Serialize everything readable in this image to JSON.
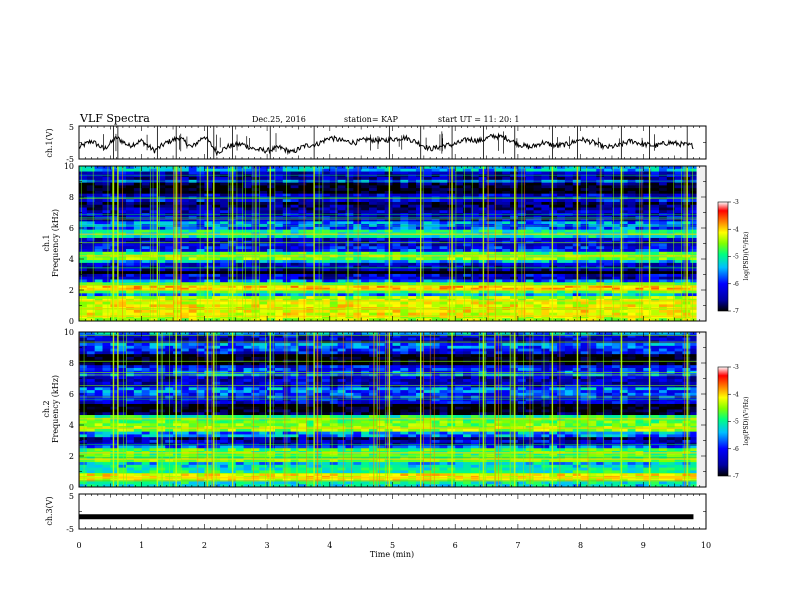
{
  "header": {
    "title": "VLF Spectra",
    "date": "Dec.25, 2016",
    "station": "station= KAP",
    "start": "start  UT =  11: 20: 1"
  },
  "colors": {
    "colormap": [
      "#000000",
      "#0000a0",
      "#0000ff",
      "#00c0ff",
      "#00ff80",
      "#80ff00",
      "#ffff00",
      "#ff8000",
      "#ff0000",
      "#ffffff"
    ],
    "waveform": "#000000"
  },
  "chart_data": [
    {
      "type": "line",
      "id": "ch1-waveform",
      "ylabel": "ch.1(V)",
      "ylim": [
        -5,
        5
      ],
      "yticks": [
        "5",
        "-5"
      ],
      "xlim": [
        0,
        10
      ],
      "series": [
        {
          "x": [
            0,
            0.2,
            0.4,
            0.6,
            0.8,
            1.0,
            1.2,
            1.4,
            1.6,
            1.8,
            2.0,
            2.2,
            2.4,
            2.6,
            2.8,
            3.0,
            3.2,
            3.4,
            3.6,
            3.8,
            4.0,
            4.2,
            4.4,
            4.6,
            4.8,
            5.0,
            5.2,
            5.4,
            5.6,
            5.8,
            6.0,
            6.2,
            6.4,
            6.6,
            6.8,
            7.0,
            7.2,
            7.4,
            7.6,
            7.8,
            8.0,
            8.2,
            8.4,
            8.6,
            8.8,
            9.0,
            9.2,
            9.4,
            9.6,
            9.8
          ],
          "values": [
            -1.5,
            0.5,
            -2.0,
            1.5,
            -1.0,
            0.5,
            -2.5,
            0.0,
            1.5,
            -1.5,
            2.0,
            -3.0,
            -1.0,
            -0.5,
            -2.0,
            -2.5,
            -1.5,
            -3.0,
            -1.0,
            -0.5,
            1.5,
            0.5,
            0.0,
            1.0,
            0.5,
            1.0,
            1.5,
            0.0,
            -2.0,
            -1.0,
            -0.5,
            1.0,
            0.5,
            2.0,
            1.5,
            -0.5,
            -1.5,
            0.0,
            -1.0,
            -0.5,
            1.0,
            0.0,
            -1.5,
            -1.0,
            0.5,
            -0.5,
            -1.0,
            0.0,
            -0.5,
            -1.0
          ]
        }
      ]
    },
    {
      "type": "heatmap",
      "id": "ch1-spectrogram",
      "ylabel_top": "ch.1",
      "ylabel": "Frequency (kHz)",
      "ylim": [
        0,
        10
      ],
      "yticks": [
        "0",
        "2",
        "4",
        "6",
        "8",
        "10"
      ],
      "xlim": [
        0,
        10
      ],
      "colorbar": {
        "label": "log(PSD)(V²/Hz)",
        "range": [
          -7,
          -3
        ],
        "ticks": [
          "-3",
          "-4",
          "-5",
          "-6",
          "-7"
        ]
      },
      "intense_bands_khz": [
        0.3,
        0.8,
        1.3,
        2.0,
        2.3,
        4.2,
        5.6
      ],
      "quiet_bands_khz": [
        3.0,
        3.4,
        6.8,
        7.4,
        8.6,
        9.4
      ],
      "bright_events_min": [
        0.55,
        0.62,
        1.25,
        1.55,
        2.05,
        2.15,
        2.45,
        3.05,
        3.75,
        4.95,
        5.45,
        5.95,
        6.45,
        6.95,
        7.55,
        7.95,
        8.65,
        9.1,
        9.7
      ]
    },
    {
      "type": "heatmap",
      "id": "ch2-spectrogram",
      "ylabel_top": "ch.2",
      "ylabel": "Frequency (kHz)",
      "ylim": [
        0,
        10
      ],
      "yticks": [
        "0",
        "2",
        "4",
        "6",
        "8",
        "10"
      ],
      "xlim": [
        0,
        10
      ],
      "colorbar": {
        "label": "log(PSD)(V²/Hz)",
        "range": [
          -7,
          -3
        ],
        "ticks": [
          "-3",
          "-4",
          "-5",
          "-6",
          "-7"
        ]
      },
      "intense_bands_khz": [
        0.6,
        1.8,
        2.2,
        3.8,
        4.4
      ],
      "quiet_bands_khz": [
        2.9,
        5.0,
        6.8,
        8.2,
        9.5
      ],
      "bright_events_min": [
        0.55,
        0.62,
        1.25,
        1.55,
        2.05,
        2.15,
        2.45,
        3.05,
        3.75,
        4.95,
        5.45,
        5.95,
        6.45,
        6.95,
        7.55,
        7.95,
        8.65,
        9.1,
        9.7
      ]
    },
    {
      "type": "line",
      "id": "ch3-waveform",
      "ylabel": "ch.3(V)",
      "ylim": [
        -5,
        5
      ],
      "yticks": [
        "5",
        "-5"
      ],
      "xlim": [
        0,
        10
      ],
      "xlabel": "Time  (min)",
      "xticks": [
        "0",
        "1",
        "2",
        "3",
        "4",
        "5",
        "6",
        "7",
        "8",
        "9",
        "10"
      ],
      "series": [
        {
          "x": [
            0,
            9.8
          ],
          "values": [
            -1.5,
            -1.5
          ]
        }
      ]
    }
  ]
}
